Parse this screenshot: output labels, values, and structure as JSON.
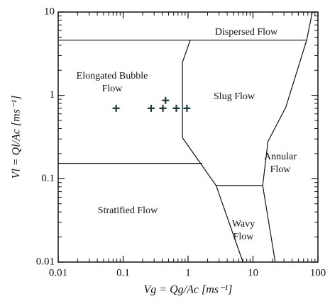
{
  "chart_data": {
    "type": "scatter",
    "xlabel": "Vg = Qg/Ac [ms⁻¹]",
    "ylabel": "Vl = Ql/Ac [ms⁻¹]",
    "xscale": "log",
    "yscale": "log",
    "xlim": [
      0.01,
      100
    ],
    "ylim": [
      0.01,
      10
    ],
    "xticks": [
      0.01,
      0.1,
      1,
      10,
      100
    ],
    "yticks": [
      0.01,
      0.1,
      1,
      10
    ],
    "color": "#1a3a3a",
    "x": [
      0.078,
      0.27,
      0.41,
      0.45,
      0.66,
      0.96
    ],
    "y": [
      0.7,
      0.7,
      0.7,
      0.87,
      0.7,
      0.7
    ],
    "boundaries": [
      {
        "x": [
          0.01,
          67
        ],
        "y": [
          4.6,
          4.6
        ]
      },
      {
        "x": [
          82,
          67,
          32,
          17,
          14.1,
          22
        ],
        "y": [
          10,
          4.6,
          0.72,
          0.28,
          0.083,
          0.01
        ]
      },
      {
        "x": [
          1.08,
          0.82,
          0.82,
          2.7,
          7.0
        ],
        "y": [
          4.6,
          2.5,
          0.31,
          0.083,
          0.01
        ]
      },
      {
        "x": [
          0.01,
          1.66
        ],
        "y": [
          0.153,
          0.153
        ]
      },
      {
        "x": [
          2.7,
          14.1
        ],
        "y": [
          0.083,
          0.083
        ]
      }
    ],
    "regions": [
      [
        "Dispersed Flow"
      ],
      [
        "Elongated Bubble",
        "Flow"
      ],
      [
        "Slug Flow"
      ],
      [
        "Annular",
        "Flow"
      ],
      [
        "Stratified Flow"
      ],
      [
        "Wavy",
        "Flow"
      ]
    ]
  }
}
